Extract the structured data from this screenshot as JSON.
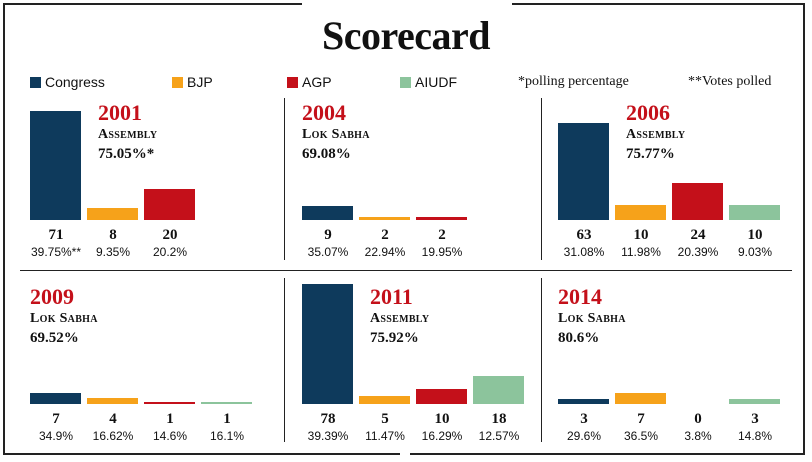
{
  "title": "Scorecard",
  "legend": {
    "congress": "Congress",
    "bjp": "BJP",
    "agp": "AGP",
    "aiudf": "AIUDF",
    "polling_note": "*polling percentage",
    "votes_note": "**Votes polled"
  },
  "colors": {
    "congress": "#0e3a5c",
    "bjp": "#f6a21a",
    "agp": "#c4101a",
    "aiudf": "#8cc49c",
    "year": "#c4101a"
  },
  "chart_data": [
    {
      "type": "bar",
      "year": "2001",
      "election": "Assembly",
      "polling": "75.05%*",
      "parties": [
        "Congress",
        "BJP",
        "AGP"
      ],
      "seats": [
        71,
        8,
        20
      ],
      "vote_share": [
        "39.75%**",
        "9.35%",
        "20.2%"
      ]
    },
    {
      "type": "bar",
      "year": "2004",
      "election": "Lok Sabha",
      "polling": "69.08%",
      "parties": [
        "Congress",
        "BJP",
        "AGP"
      ],
      "seats": [
        9,
        2,
        2
      ],
      "vote_share": [
        "35.07%",
        "22.94%",
        "19.95%"
      ]
    },
    {
      "type": "bar",
      "year": "2006",
      "election": "Assembly",
      "polling": "75.77%",
      "parties": [
        "Congress",
        "BJP",
        "AGP",
        "AIUDF"
      ],
      "seats": [
        63,
        10,
        24,
        10
      ],
      "vote_share": [
        "31.08%",
        "11.98%",
        "20.39%",
        "9.03%"
      ]
    },
    {
      "type": "bar",
      "year": "2009",
      "election": "Lok Sabha",
      "polling": "69.52%",
      "parties": [
        "Congress",
        "BJP",
        "AGP",
        "AIUDF"
      ],
      "seats": [
        7,
        4,
        1,
        1
      ],
      "vote_share": [
        "34.9%",
        "16.62%",
        "14.6%",
        "16.1%"
      ]
    },
    {
      "type": "bar",
      "year": "2011",
      "election": "Assembly",
      "polling": "75.92%",
      "parties": [
        "Congress",
        "BJP",
        "AGP",
        "AIUDF"
      ],
      "seats": [
        78,
        5,
        10,
        18
      ],
      "vote_share": [
        "39.39%",
        "11.47%",
        "16.29%",
        "12.57%"
      ]
    },
    {
      "type": "bar",
      "year": "2014",
      "election": "Lok Sabha",
      "polling": "80.6%",
      "parties": [
        "Congress",
        "BJP",
        "AGP",
        "AIUDF"
      ],
      "seats": [
        3,
        7,
        0,
        3
      ],
      "vote_share": [
        "29.6%",
        "36.5%",
        "3.8%",
        "14.8%"
      ]
    }
  ]
}
